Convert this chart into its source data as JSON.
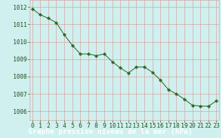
{
  "x": [
    0,
    1,
    2,
    3,
    4,
    5,
    6,
    7,
    8,
    9,
    10,
    11,
    12,
    13,
    14,
    15,
    16,
    17,
    18,
    19,
    20,
    21,
    22,
    23
  ],
  "y": [
    1011.9,
    1011.55,
    1011.35,
    1011.1,
    1010.4,
    1009.8,
    1009.3,
    1009.3,
    1009.2,
    1009.3,
    1008.85,
    1008.5,
    1008.2,
    1008.55,
    1008.55,
    1008.25,
    1007.8,
    1007.25,
    1007.0,
    1006.7,
    1006.35,
    1006.3,
    1006.3,
    1006.6
  ],
  "line_color": "#2d6a2d",
  "marker": "D",
  "marker_size": 2.5,
  "bg_color": "#cff0ee",
  "grid_color": "#d4a0a0",
  "ylabel_ticks": [
    1006,
    1007,
    1008,
    1009,
    1010,
    1011,
    1012
  ],
  "xlabel_ticks": [
    0,
    1,
    2,
    3,
    4,
    5,
    6,
    7,
    8,
    9,
    10,
    11,
    12,
    13,
    14,
    15,
    16,
    17,
    18,
    19,
    20,
    21,
    22,
    23
  ],
  "ylim": [
    1005.5,
    1012.4
  ],
  "xlim": [
    -0.3,
    23.3
  ],
  "xlabel": "Graphe pression niveau de la mer (hPa)",
  "xlabel_fontsize": 7.5,
  "tick_fontsize": 6.0,
  "axis_label_color": "#1a4d1a",
  "xlabel_bg_color": "#2d6a2d",
  "xlabel_text_color": "#ffffff"
}
